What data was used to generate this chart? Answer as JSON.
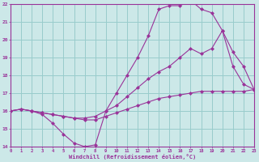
{
  "xlabel": "Windchill (Refroidissement éolien,°C)",
  "bg_color": "#cce8e8",
  "grid_color": "#99cccc",
  "line_color": "#993399",
  "spine_color": "#993399",
  "xmin": 0,
  "xmax": 23,
  "ymin": 14,
  "ymax": 22,
  "line1_x": [
    0,
    1,
    2,
    3,
    4,
    5,
    6,
    7,
    8,
    9,
    10,
    11,
    12,
    13,
    14,
    15,
    16,
    17,
    18,
    19,
    20,
    21,
    22,
    23
  ],
  "line1_y": [
    16.0,
    16.1,
    16.0,
    15.8,
    15.3,
    14.7,
    14.2,
    14.0,
    14.1,
    16.0,
    17.0,
    18.0,
    19.0,
    20.2,
    21.7,
    21.9,
    21.9,
    22.2,
    21.7,
    21.5,
    20.5,
    18.5,
    17.5,
    17.2
  ],
  "line2_x": [
    0,
    1,
    2,
    3,
    4,
    5,
    6,
    7,
    8,
    9,
    10,
    11,
    12,
    13,
    14,
    15,
    16,
    17,
    18,
    19,
    20,
    21,
    22,
    23
  ],
  "line2_y": [
    16.0,
    16.1,
    16.0,
    15.9,
    15.8,
    15.7,
    15.6,
    15.6,
    15.7,
    16.0,
    16.3,
    16.8,
    17.3,
    17.8,
    18.2,
    18.5,
    19.0,
    19.5,
    19.2,
    19.5,
    20.5,
    19.3,
    18.5,
    17.2
  ],
  "line3_x": [
    0,
    1,
    2,
    3,
    4,
    5,
    6,
    7,
    8,
    9,
    10,
    11,
    12,
    13,
    14,
    15,
    16,
    17,
    18,
    19,
    20,
    21,
    22,
    23
  ],
  "line3_y": [
    16.0,
    16.1,
    16.0,
    15.9,
    15.8,
    15.7,
    15.6,
    15.5,
    15.5,
    15.7,
    15.9,
    16.1,
    16.3,
    16.5,
    16.7,
    16.8,
    16.9,
    17.0,
    17.1,
    17.1,
    17.1,
    17.1,
    17.1,
    17.2
  ],
  "xtick_labels": [
    "0",
    "1",
    "2",
    "3",
    "4",
    "5",
    "6",
    "7",
    "8",
    "9",
    "10",
    "11",
    "12",
    "13",
    "14",
    "15",
    "16",
    "17",
    "18",
    "19",
    "20",
    "21",
    "22",
    "23"
  ],
  "ytick_labels": [
    "14",
    "15",
    "16",
    "17",
    "18",
    "19",
    "20",
    "21",
    "22"
  ]
}
